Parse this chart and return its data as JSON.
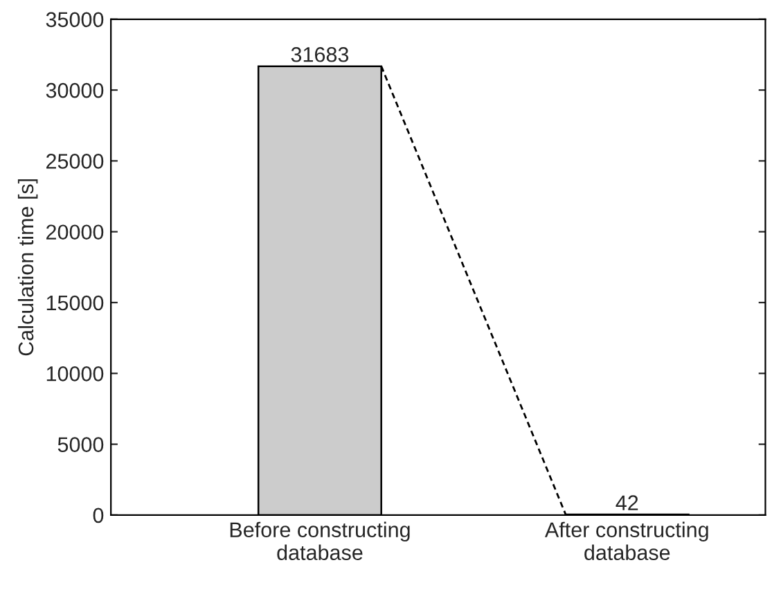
{
  "chart_data": {
    "type": "bar",
    "ylabel": "Calculation time [s]",
    "categories": [
      "Before constructing\ndatabase",
      "After constructing\ndatabase"
    ],
    "values": [
      31683,
      42
    ],
    "color": "#cccccc",
    "data_labels": true,
    "ylim": [
      0,
      35000
    ],
    "yticks": [
      0,
      5000,
      10000,
      15000,
      20000,
      25000,
      30000,
      35000
    ],
    "grid": false,
    "legend": false
  }
}
